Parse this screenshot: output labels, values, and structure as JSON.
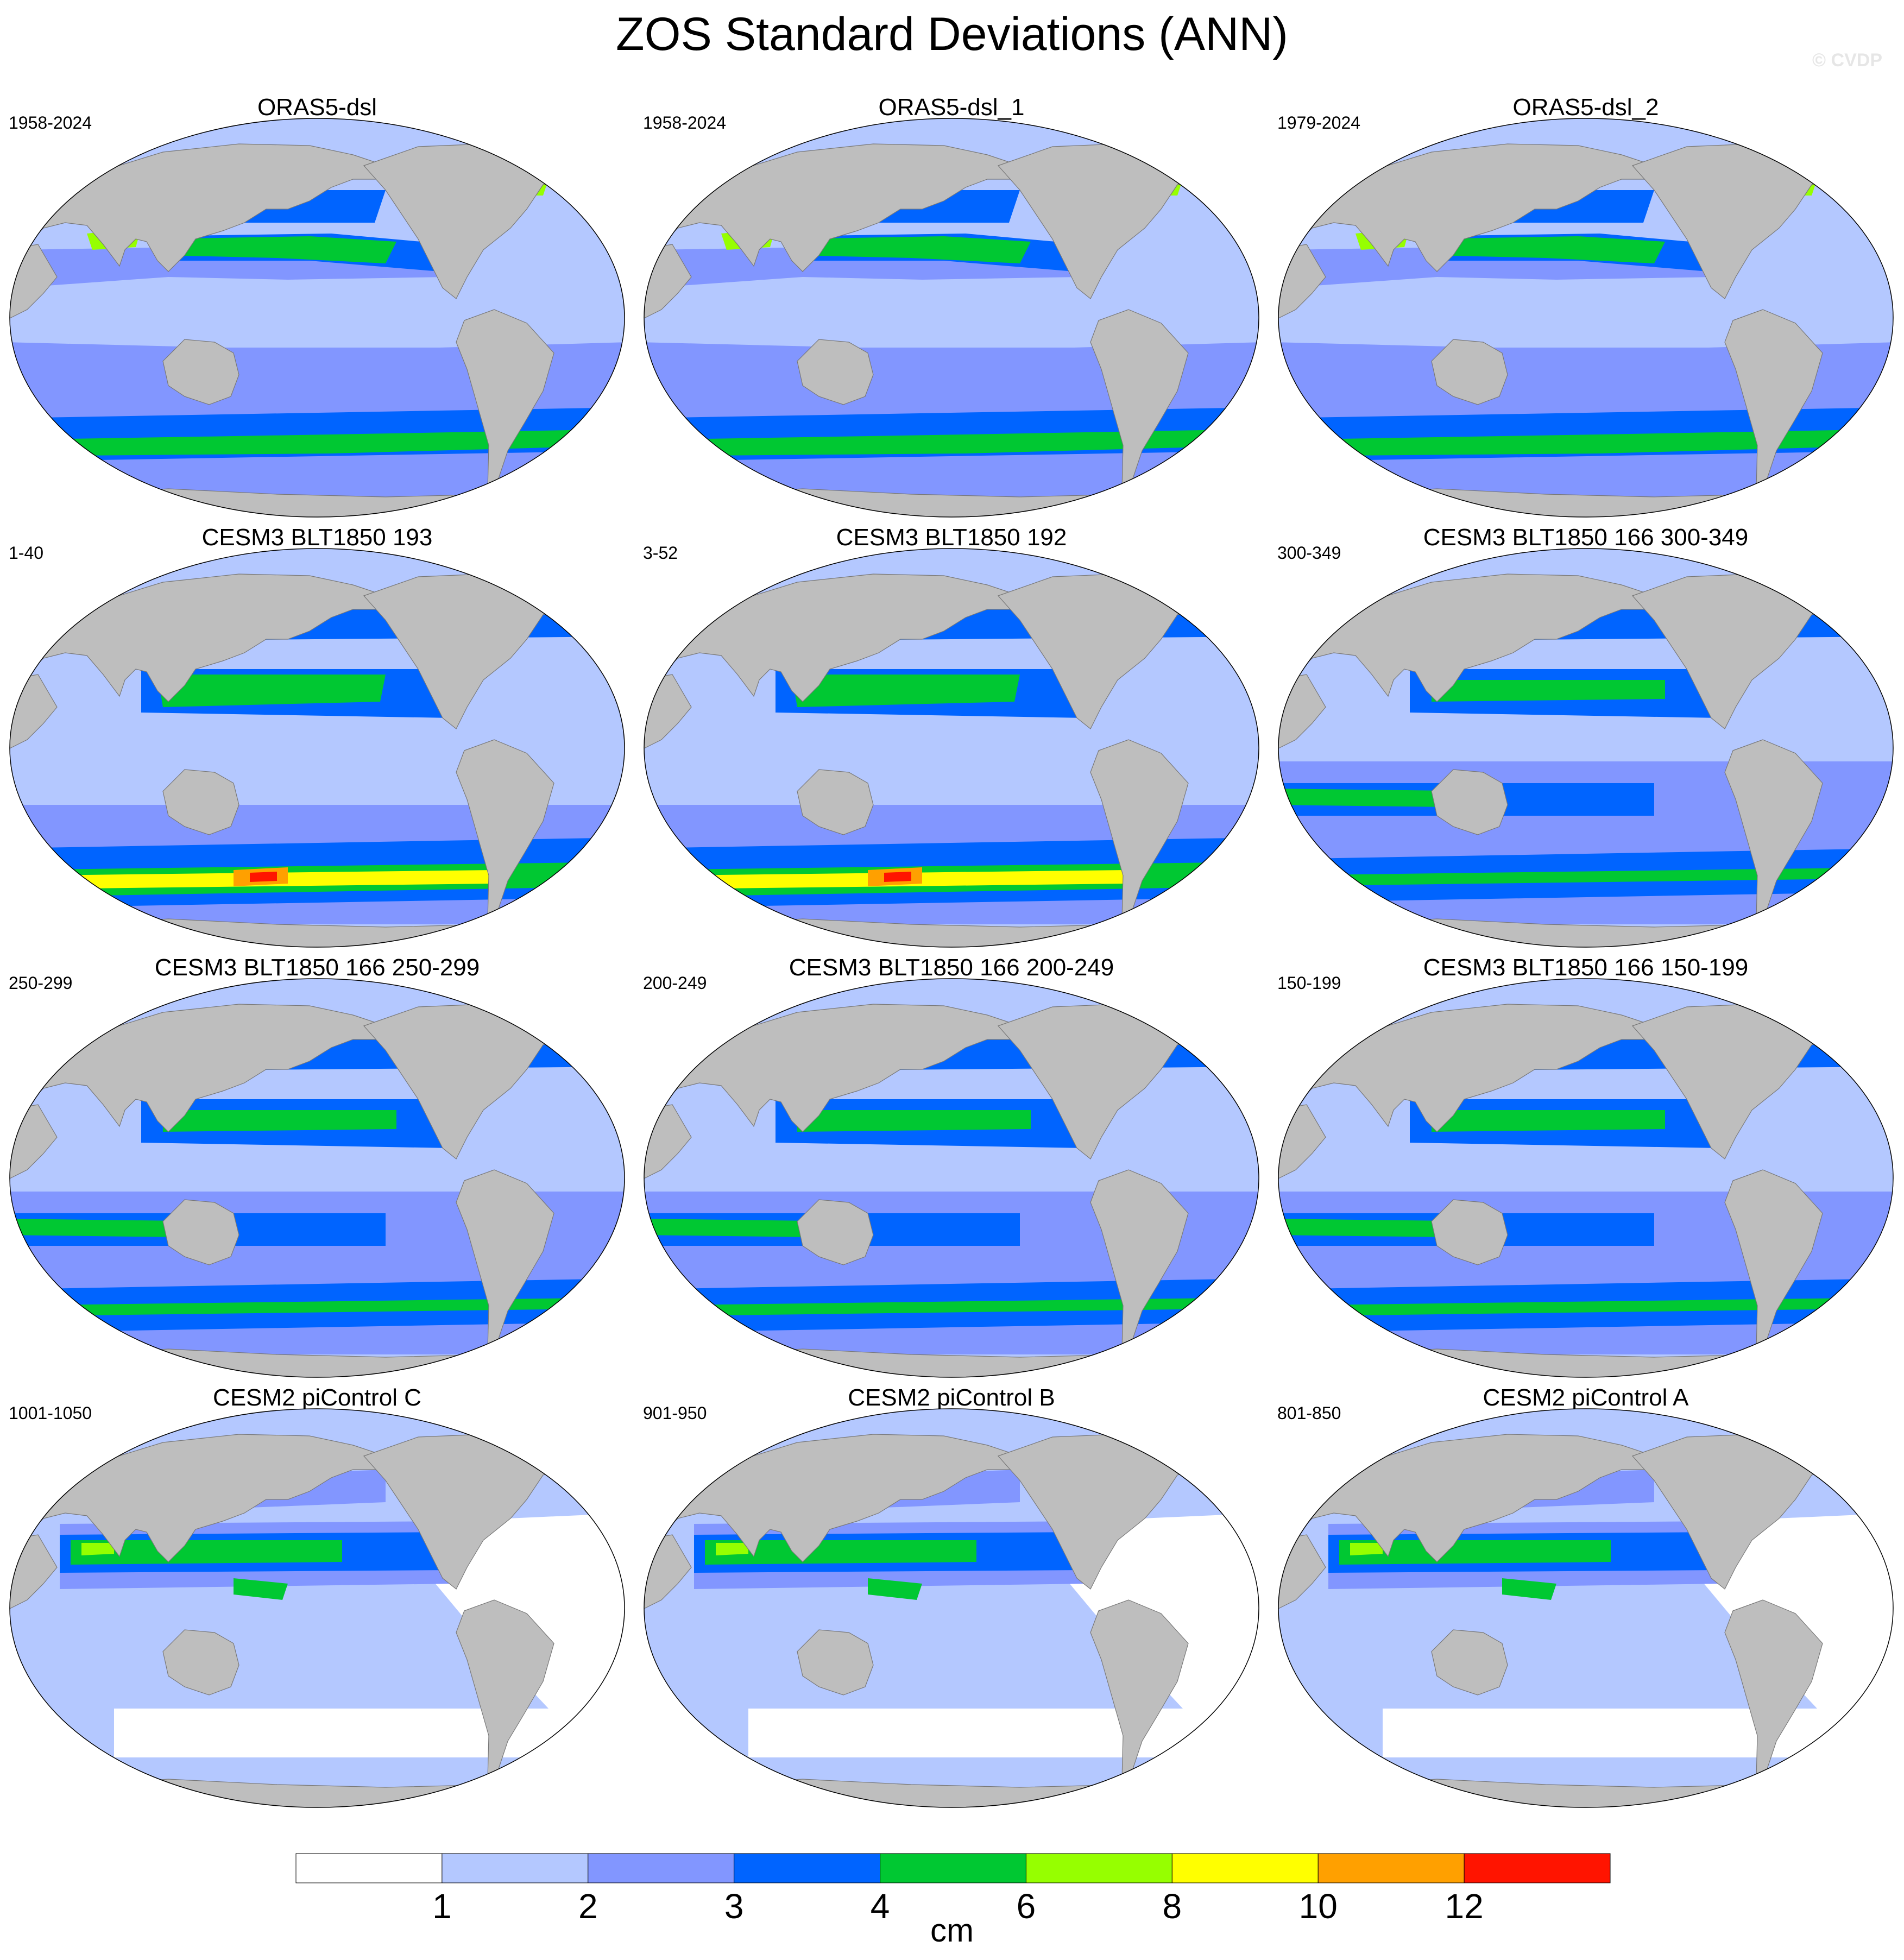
{
  "title": "ZOS Standard Deviations (ANN)",
  "watermark": "© CVDP",
  "colorbar": {
    "units": "cm",
    "tick_labels": [
      "1",
      "2",
      "3",
      "4",
      "6",
      "8",
      "10",
      "12"
    ],
    "levels": [
      1,
      2,
      3,
      4,
      6,
      8,
      10,
      12
    ],
    "colors": [
      "#ffffff",
      "#b4c8ff",
      "#8296ff",
      "#0064ff",
      "#00c832",
      "#96ff00",
      "#ffff00",
      "#ffa000",
      "#ff1400"
    ]
  },
  "colors": {
    "land": "#bebebe",
    "coast": "#787878"
  },
  "panels": [
    {
      "title": "ORAS5-dsl",
      "period": "1958-2024",
      "variant": "oras"
    },
    {
      "title": "ORAS5-dsl_1",
      "period": "1958-2024",
      "variant": "oras"
    },
    {
      "title": "ORAS5-dsl_2",
      "period": "1979-2024",
      "variant": "oras"
    },
    {
      "title": "CESM3 BLT1850 193",
      "period": "1-40",
      "variant": "cesm3-strong"
    },
    {
      "title": "CESM3 BLT1850 192",
      "period": "3-52",
      "variant": "cesm3-strong"
    },
    {
      "title": "CESM3 BLT1850 166 300-349",
      "period": "300-349",
      "variant": "cesm3"
    },
    {
      "title": "CESM3 BLT1850 166 250-299",
      "period": "250-299",
      "variant": "cesm3"
    },
    {
      "title": "CESM3 BLT1850 166 200-249",
      "period": "200-249",
      "variant": "cesm3"
    },
    {
      "title": "CESM3 BLT1850 166 150-199",
      "period": "150-199",
      "variant": "cesm3"
    },
    {
      "title": "CESM2 piControl C",
      "period": "1001-1050",
      "variant": "cesm2"
    },
    {
      "title": "CESM2 piControl B",
      "period": "901-950",
      "variant": "cesm2"
    },
    {
      "title": "CESM2 piControl A",
      "period": "801-850",
      "variant": "cesm2"
    }
  ]
}
